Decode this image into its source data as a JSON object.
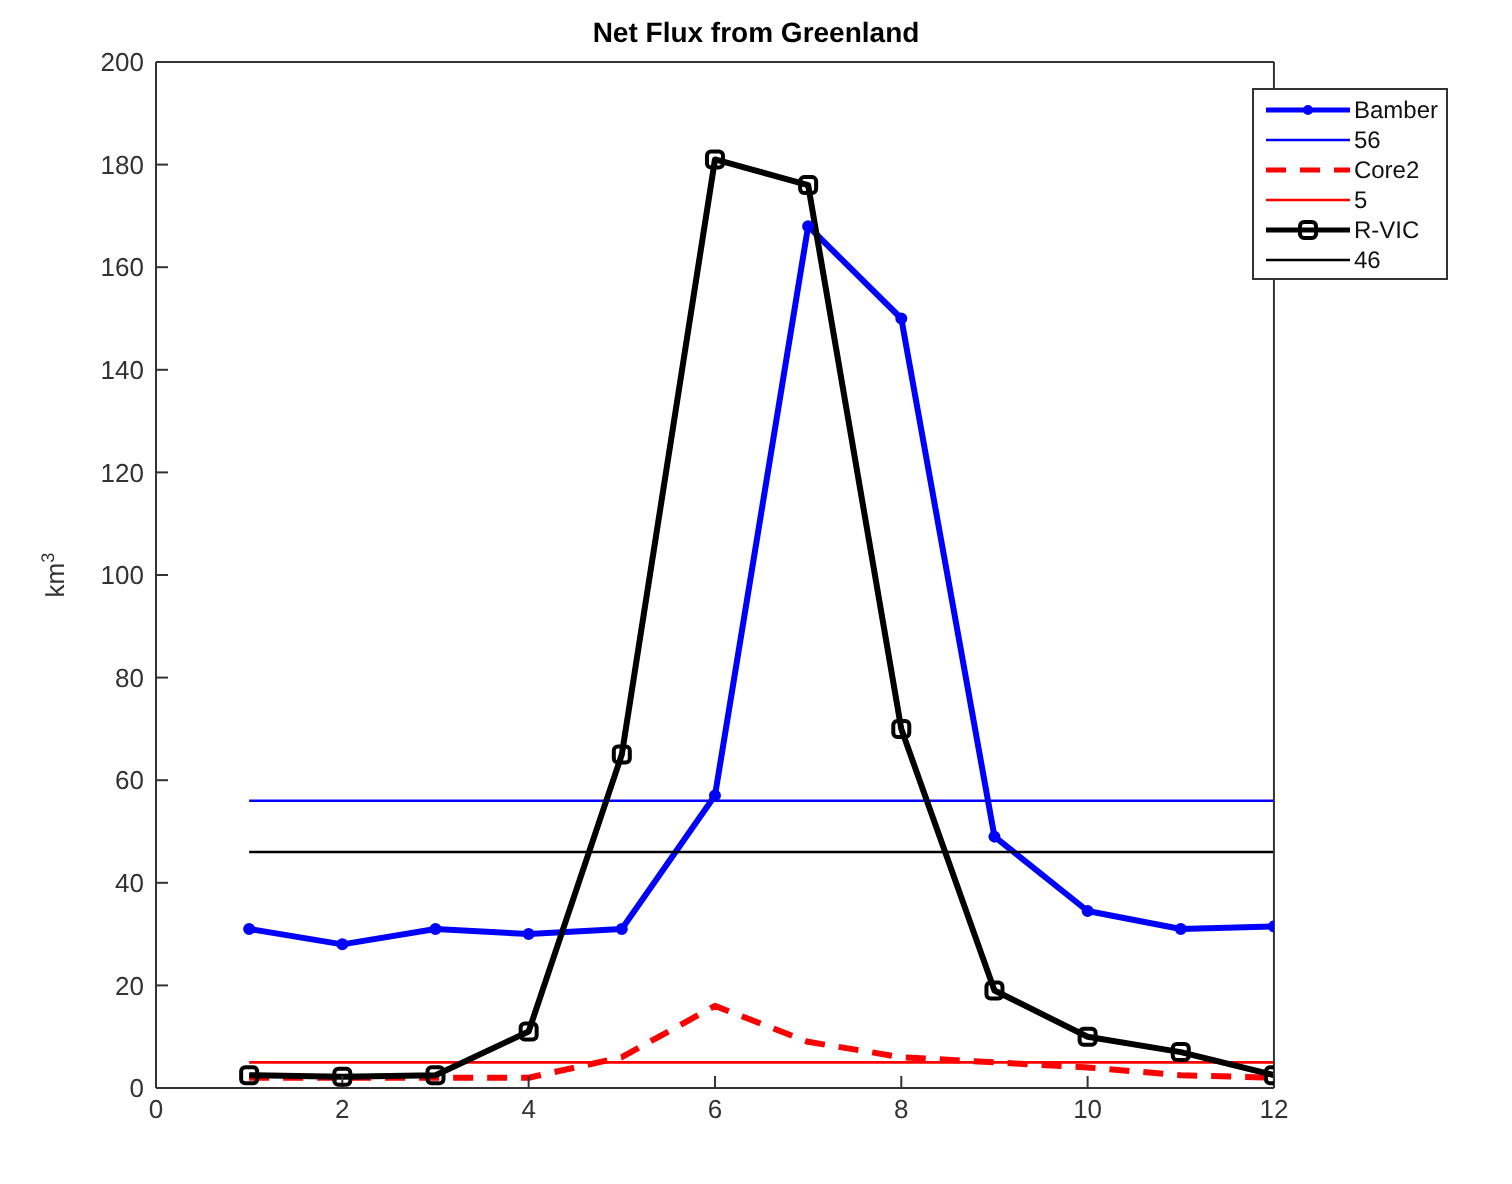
{
  "chart_data": {
    "type": "line",
    "title": "Net Flux from Greenland",
    "ylabel": "km$^{3}$",
    "x": [
      1,
      2,
      3,
      4,
      5,
      6,
      7,
      8,
      9,
      10,
      11,
      12
    ],
    "xlim": [
      0,
      12
    ],
    "xticks": [
      0,
      2,
      4,
      6,
      8,
      10,
      12
    ],
    "ylim": [
      0,
      200
    ],
    "yticks": [
      0,
      20,
      40,
      60,
      80,
      100,
      120,
      140,
      160,
      180,
      200
    ],
    "legend": "top right",
    "series": [
      {
        "name": "Bamber",
        "color": "#0000ff",
        "marker": "circle",
        "line_style": "solid",
        "values": [
          31,
          28,
          31,
          30,
          31,
          57,
          168,
          150,
          49,
          34.5,
          31,
          31.5
        ]
      },
      {
        "name": "56",
        "color": "#0000ff",
        "marker": "none",
        "line_style": "solid",
        "values": [
          56,
          56,
          56,
          56,
          56,
          56,
          56,
          56,
          56,
          56,
          56,
          56
        ]
      },
      {
        "name": "Core2",
        "color": "#ff0000",
        "marker": "none",
        "line_style": "dashed",
        "values": [
          2,
          2,
          2,
          2,
          6,
          16,
          9,
          6,
          5,
          4,
          2.5,
          2
        ]
      },
      {
        "name": "5",
        "color": "#ff0000",
        "marker": "none",
        "line_style": "solid",
        "values": [
          5,
          5,
          5,
          5,
          5,
          5,
          5,
          5,
          5,
          5,
          5,
          5
        ]
      },
      {
        "name": "R-VIC",
        "color": "#000000",
        "marker": "square",
        "line_style": "solid",
        "values": [
          2.5,
          2.2,
          2.5,
          11,
          65,
          181,
          176,
          70,
          19,
          10,
          7,
          2.5
        ]
      },
      {
        "name": "46",
        "color": "#000000",
        "marker": "none",
        "line_style": "solid",
        "values": [
          46,
          46,
          46,
          46,
          46,
          46,
          46,
          46,
          46,
          46,
          46,
          46
        ]
      }
    ]
  }
}
